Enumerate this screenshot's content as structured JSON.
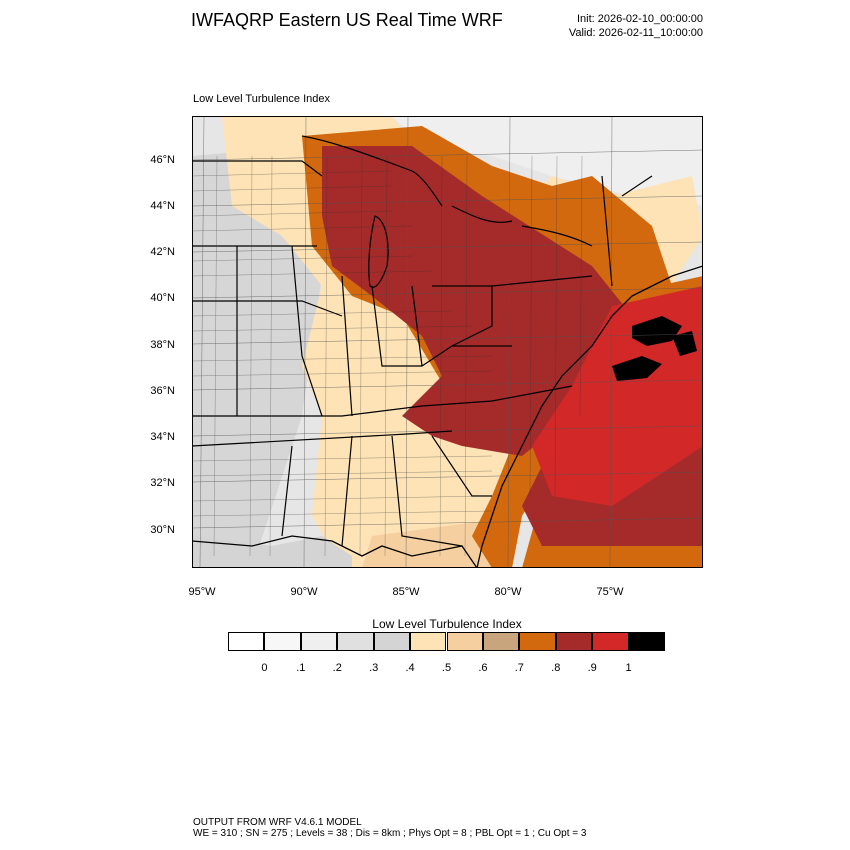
{
  "header": {
    "title": "IWFAQRP Eastern US Real Time WRF",
    "init": "Init: 2026-02-10_00:00:00",
    "valid": "Valid: 2026-02-11_10:00:00",
    "subtitle": "Low Level Turbulence Index"
  },
  "map": {
    "lat_labels": [
      "46°N",
      "44°N",
      "42°N",
      "40°N",
      "38°N",
      "36°N",
      "34°N",
      "32°N",
      "30°N"
    ],
    "lon_labels": [
      "95°W",
      "90°W",
      "85°W",
      "80°W",
      "75°W"
    ],
    "field": "Low Level Turbulence Index",
    "colors": {
      "land_low": "#e6e6e6",
      "land_mid": "#fde3b6",
      "orange": "#d2690f",
      "dark_red": "#a52a2a",
      "red": "#d22828",
      "black": "#000000"
    }
  },
  "colorbar": {
    "title": "Low Level Turbulence Index",
    "colors": [
      "#ffffff",
      "#f7f7f7",
      "#efefef",
      "#e0e0e0",
      "#d4d4d4",
      "#fde3b6",
      "#f5cf9f",
      "#c9a57e",
      "#d2690f",
      "#a52a2a",
      "#d22828",
      "#000000"
    ],
    "labels": [
      "0",
      ".1",
      ".2",
      ".3",
      ".4",
      ".5",
      ".6",
      ".7",
      ".8",
      ".9",
      "1"
    ]
  },
  "footer": {
    "line1": "OUTPUT FROM WRF V4.6.1 MODEL",
    "line2": "WE = 310 ; SN = 275 ; Levels = 38 ; Dis = 8km ; Phys Opt = 8 ; PBL Opt = 1 ; Cu Opt = 3"
  }
}
